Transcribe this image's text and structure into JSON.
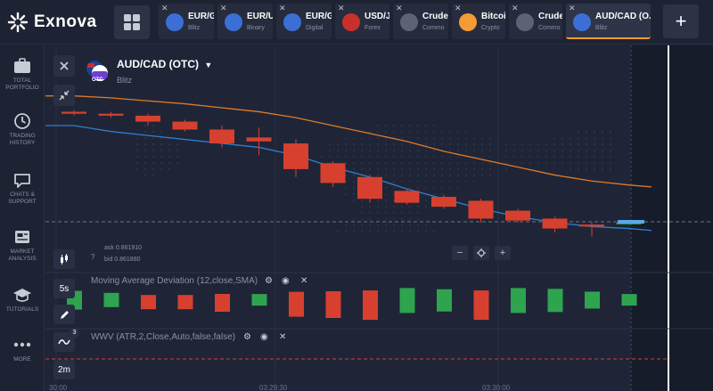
{
  "app": {
    "brand": "Exnova"
  },
  "tabs": [
    {
      "name": "EUR/G",
      "type": "Blitz",
      "icon": "otc-eu-icon",
      "color": "#3b6fd6"
    },
    {
      "name": "EUR/U",
      "type": "Binary",
      "icon": "eu-us-flag-icon",
      "color": "#3b6fd6"
    },
    {
      "name": "EUR/G",
      "type": "Digital",
      "icon": "eu-uk-flag-icon",
      "color": "#3b6fd6"
    },
    {
      "name": "USD/J",
      "type": "Forex",
      "icon": "us-jp-flag-icon",
      "color": "#c9302c"
    },
    {
      "name": "Crude",
      "type": "Commo",
      "icon": "oil-drop-icon",
      "color": "#5d6373"
    },
    {
      "name": "Bitcoin",
      "type": "Crypto",
      "icon": "bitcoin-icon",
      "color": "#f39c33"
    },
    {
      "name": "Crude",
      "type": "Commo",
      "icon": "oil-drop-icon",
      "color": "#5d6373"
    },
    {
      "name": "AUD/CAD (O...",
      "type": "Blitz",
      "icon": "otc-au-icon",
      "color": "#3b6fd6"
    }
  ],
  "sidebar": {
    "items": [
      {
        "label": "TOTAL PORTFOLIO",
        "icon": "briefcase-icon"
      },
      {
        "label": "TRADING HISTORY",
        "icon": "history-icon"
      },
      {
        "label": "CHATS & SUPPORT",
        "icon": "chat-icon"
      },
      {
        "label": "MARKET ANALYSIS",
        "icon": "news-icon"
      },
      {
        "label": "TUTORIALS",
        "icon": "graduation-cap-icon"
      },
      {
        "label": "MORE",
        "icon": "more-dots-icon"
      }
    ]
  },
  "asset": {
    "title": "AUD/CAD (OTC)",
    "subtitle": "Blitz",
    "otc_badge": "OTC",
    "ask": "ask 0.861910",
    "bid": "bid 0.861880"
  },
  "indicators": {
    "mad": "Moving Average Deviation (12,close,SMA)",
    "wwv": "WWV (ATR,2,Close,Auto,false,false)"
  },
  "tools": {
    "timeframe": "5s",
    "expiry": "2m",
    "indicator_count": "3"
  },
  "zoom": {
    "minus": "−",
    "plus": "+"
  },
  "add_tab": "+",
  "time_axis": [
    "30:00",
    "03:29:30",
    "03:30:00"
  ],
  "colors": {
    "up": "#2ea44f",
    "down": "#d7402f",
    "ma_orange": "#e07a2a",
    "ma_blue": "#2f7fd0"
  },
  "chart_data": {
    "type": "candlestick",
    "candles": [
      {
        "open": 100,
        "close": 99,
        "high": 101,
        "low": 98
      },
      {
        "open": 99,
        "close": 98,
        "high": 100,
        "low": 97
      },
      {
        "open": 98,
        "close": 95,
        "high": 99,
        "low": 93
      },
      {
        "open": 95,
        "close": 91,
        "high": 96,
        "low": 90
      },
      {
        "open": 91,
        "close": 84,
        "high": 93,
        "low": 82
      },
      {
        "open": 87,
        "close": 85,
        "high": 92,
        "low": 78
      },
      {
        "open": 84,
        "close": 71,
        "high": 86,
        "low": 67
      },
      {
        "open": 74,
        "close": 64,
        "high": 75,
        "low": 62
      },
      {
        "open": 67,
        "close": 56,
        "high": 68,
        "low": 54
      },
      {
        "open": 60,
        "close": 54,
        "high": 61,
        "low": 53
      },
      {
        "open": 57,
        "close": 52,
        "high": 58,
        "low": 51
      },
      {
        "open": 55,
        "close": 46,
        "high": 56,
        "low": 44
      },
      {
        "open": 50,
        "close": 45,
        "high": 51,
        "low": 44
      },
      {
        "open": 46,
        "close": 41,
        "high": 47,
        "low": 39
      },
      {
        "open": 43,
        "close": 42,
        "high": 44,
        "low": 37
      },
      {
        "open": 44,
        "close": 44,
        "high": 45,
        "low": 43
      }
    ],
    "ma_orange": [
      108,
      107,
      105.5,
      104,
      102,
      100,
      97,
      93,
      89,
      85,
      80,
      76,
      72,
      68,
      65,
      63
    ],
    "ma_blue": [
      93,
      90,
      88,
      86,
      84,
      82,
      78,
      72,
      67,
      61,
      56,
      51,
      47,
      44,
      42,
      41
    ],
    "y_range": [
      30,
      120
    ],
    "mad_bars": [
      {
        "v": 2.1,
        "dir": "up"
      },
      {
        "v": 1.6,
        "dir": "up"
      },
      {
        "v": 1.6,
        "dir": "down"
      },
      {
        "v": 1.6,
        "dir": "down"
      },
      {
        "v": 2.0,
        "dir": "down"
      },
      {
        "v": 1.3,
        "dir": "up"
      },
      {
        "v": 2.8,
        "dir": "down"
      },
      {
        "v": 3.0,
        "dir": "down"
      },
      {
        "v": 3.3,
        "dir": "down"
      },
      {
        "v": 2.8,
        "dir": "up"
      },
      {
        "v": 2.5,
        "dir": "up"
      },
      {
        "v": 3.3,
        "dir": "down"
      },
      {
        "v": 2.8,
        "dir": "up"
      },
      {
        "v": 2.6,
        "dir": "up"
      },
      {
        "v": 1.9,
        "dir": "up"
      },
      {
        "v": 1.3,
        "dir": "up"
      }
    ]
  }
}
